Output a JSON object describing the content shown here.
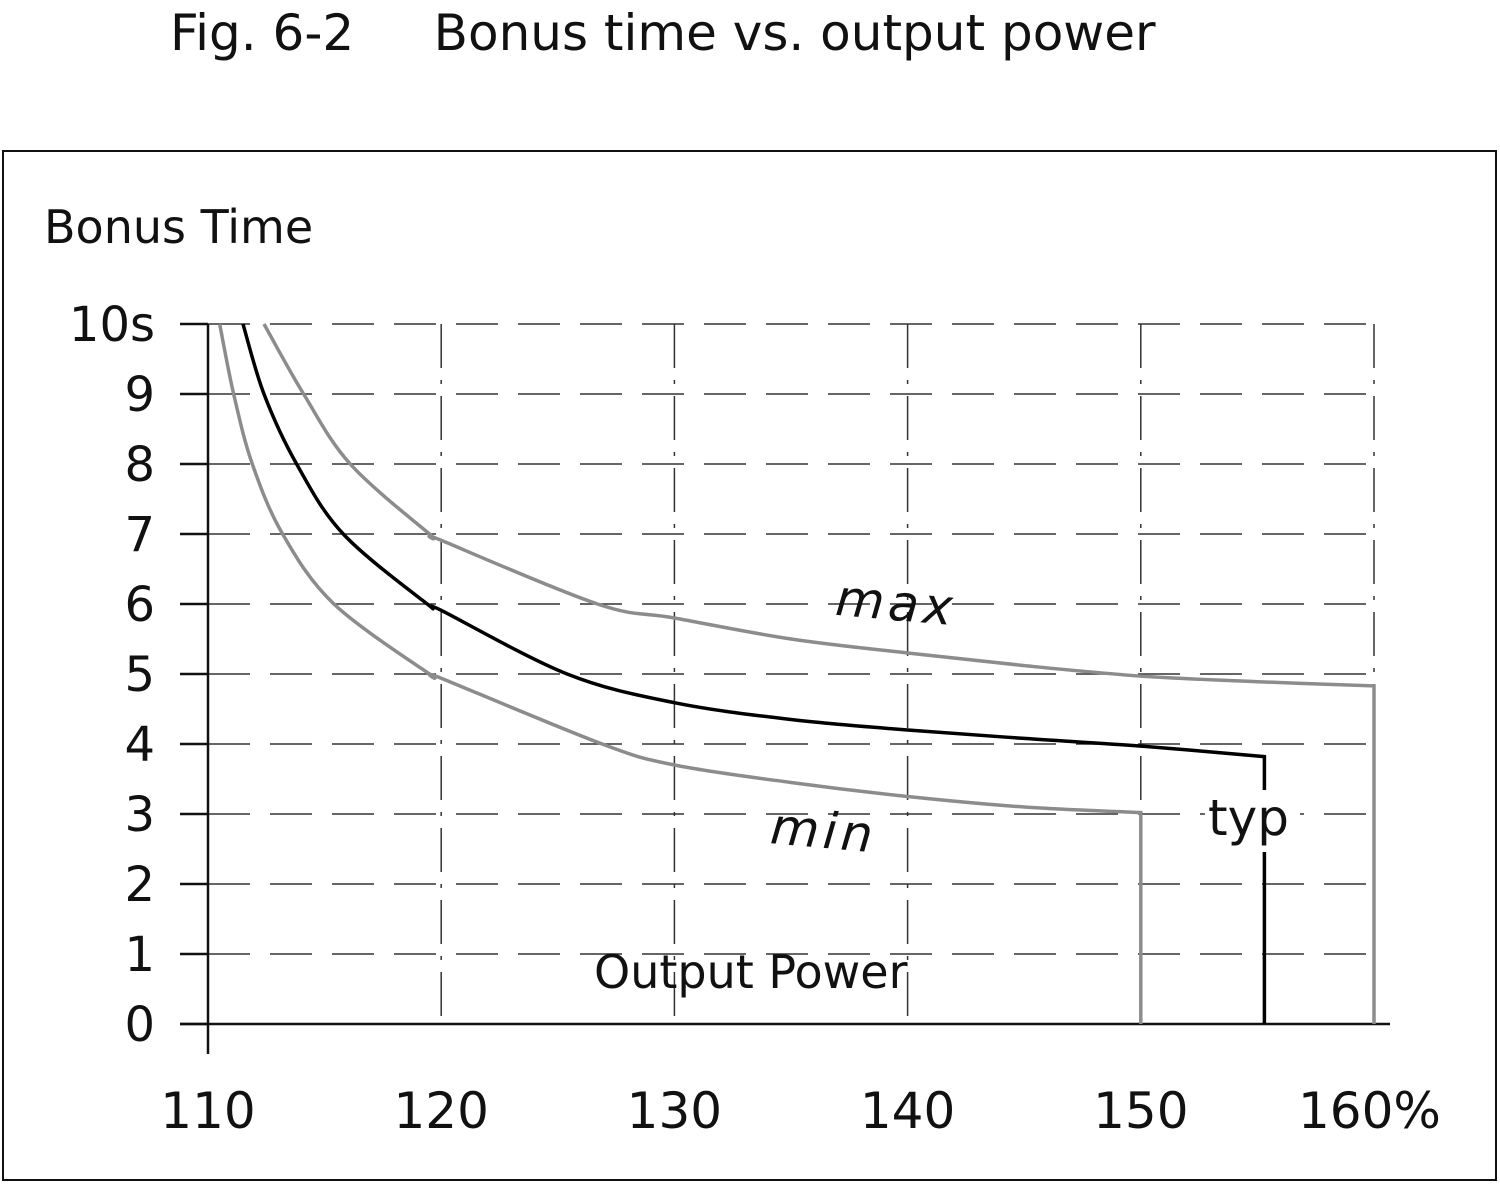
{
  "chart_data": {
    "type": "line",
    "title": "Fig. 6-2     Bonus time vs. output power",
    "xlabel": "Output Power",
    "ylabel": "Bonus Time",
    "xlim": [
      110,
      160
    ],
    "ylim": [
      0,
      10
    ],
    "x_ticks": [
      "110",
      "120",
      "130",
      "140",
      "150",
      "160%"
    ],
    "y_ticks": [
      "0",
      "1",
      "2",
      "3",
      "4",
      "5",
      "6",
      "7",
      "8",
      "9",
      "10s"
    ],
    "grid": true,
    "colors": {
      "min": "#8c8c8c",
      "typ": "#000000",
      "max": "#8c8c8c"
    },
    "series": [
      {
        "name": "min",
        "points": [
          [
            110.5,
            10
          ],
          [
            111.1,
            9
          ],
          [
            111.9,
            8
          ],
          [
            113.2,
            7
          ],
          [
            115.4,
            6
          ],
          [
            119.5,
            5
          ],
          [
            120,
            4.94
          ],
          [
            126.9,
            4
          ],
          [
            130,
            3.7
          ],
          [
            135,
            3.45
          ],
          [
            140,
            3.25
          ],
          [
            145,
            3.1
          ],
          [
            150,
            3.02
          ],
          [
            150,
            0
          ]
        ]
      },
      {
        "name": "typ",
        "points": [
          [
            111.5,
            10
          ],
          [
            112.4,
            9
          ],
          [
            113.8,
            8
          ],
          [
            115.8,
            7
          ],
          [
            119.4,
            6
          ],
          [
            120,
            5.91
          ],
          [
            125.4,
            5
          ],
          [
            130,
            4.59
          ],
          [
            135,
            4.35
          ],
          [
            140,
            4.2
          ],
          [
            145,
            4.08
          ],
          [
            150,
            3.97
          ],
          [
            155.3,
            3.82
          ],
          [
            155.3,
            0
          ]
        ]
      },
      {
        "name": "max",
        "points": [
          [
            112.4,
            10
          ],
          [
            114.1,
            9
          ],
          [
            116.1,
            8
          ],
          [
            119.5,
            7
          ],
          [
            120,
            6.91
          ],
          [
            126.7,
            6
          ],
          [
            130,
            5.8
          ],
          [
            135,
            5.5
          ],
          [
            140,
            5.3
          ],
          [
            145,
            5.12
          ],
          [
            150,
            4.97
          ],
          [
            155,
            4.89
          ],
          [
            160,
            4.83
          ],
          [
            160,
            0
          ]
        ]
      }
    ]
  }
}
